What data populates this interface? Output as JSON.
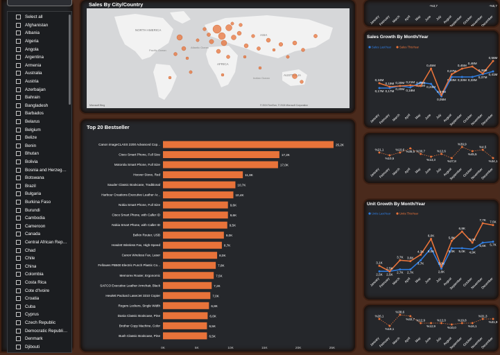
{
  "slicer": {
    "items": [
      "Select all",
      "Afghanistan",
      "Albania",
      "Algeria",
      "Angola",
      "Argentina",
      "Armenia",
      "Australia",
      "Austria",
      "Azerbaijan",
      "Bahrain",
      "Bangladesh",
      "Barbados",
      "Belarus",
      "Belgium",
      "Belize",
      "Benin",
      "Bhutan",
      "Bolivia",
      "Bosnia and Herzegov...",
      "Botswana",
      "Brazil",
      "Bulgaria",
      "Burkina Faso",
      "Burundi",
      "Cambodia",
      "Cameroon",
      "Canada",
      "Central African Repu...",
      "Chad",
      "Chile",
      "China",
      "Colombia",
      "Costa Rica",
      "Cote d'Ivoire",
      "Croatia",
      "Cuba",
      "Cyprus",
      "Czech Republic",
      "Democratic Republic ...",
      "Denmark",
      "Djibouti"
    ]
  },
  "map": {
    "title": "Sales By City/Country",
    "labels": [
      "NORTH AMERICA",
      "Pacific Ocean",
      "Atlantic Ocean",
      "ASIA",
      "AFRICA",
      "Indian Ocean",
      "AUSTRALIA"
    ],
    "attribution": "© 2024 TomTom, © 2024 Microsoft Corporation",
    "logo": "Microsoft Bing"
  },
  "top20": {
    "title": "Top 20 Bestseller",
    "chart_data": {
      "type": "bar",
      "orientation": "horizontal",
      "categories": [
        "Canon imageCLASS 2200 Advanced Cop...",
        "Cisco Smart Phone, Full Size",
        "Motorola Smart Phone, Full Size",
        "Hoover Stove, Red",
        "Sauder Classic Bookcase, Traditional",
        "Harbour Creations Executive Leather Ar...",
        "Nokia Smart Phone, Full Size",
        "Cisco Smart Phone, with Caller ID",
        "Nokia Smart Phone, with Caller ID",
        "Belkin Router, USB",
        "Hewlett Wireless Fax, High-Speed",
        "Canon Wireless Fax, Laser",
        "Fellowes PB500 Electric Punch Plastic Co...",
        "Memorex Router, Ergonomic",
        "SAFCO Executive Leather Armchair, Black",
        "Hewlett Packard LaserJet 3310 Copier",
        "Rogers Lockers, Single Width",
        "Dania Classic Bookcase, Pine",
        "Brother Copy Machine, Color",
        "Bush Classic Bookcase, Pine"
      ],
      "values": [
        25.2,
        17.2,
        17.0,
        11.8,
        10.7,
        10.4,
        9.6,
        9.6,
        9.5,
        9.0,
        8.7,
        8.0,
        7.8,
        7.5,
        7.2,
        7.0,
        6.8,
        6.6,
        6.5,
        6.5
      ],
      "labels": [
        "25,2K",
        "17,2K",
        "17,0K",
        "11,8K",
        "10,7K",
        "10,4K",
        "9,6K",
        "9,6K",
        "9,5K",
        "9,0K",
        "8,7K",
        "8,0K",
        "7,8K",
        "7,5K",
        "7,2K",
        "7,0K",
        "6,8K",
        "6,6K",
        "6,5K",
        "6,5K"
      ],
      "xticks": [
        "0K",
        "5K",
        "10K",
        "15K",
        "20K",
        "25K"
      ],
      "xlim": [
        0,
        25
      ],
      "color": "#e8733a"
    }
  },
  "months": [
    "January",
    "February",
    "March",
    "April",
    "May",
    "June",
    "July",
    "August",
    "September",
    "October",
    "November",
    "December"
  ],
  "r1": {
    "labels": [
      "-%3,7",
      "-%5,7"
    ]
  },
  "sales_growth": {
    "title": "Sales Growth By Month/Year",
    "chart_data": {
      "type": "line",
      "series": [
        {
          "name": "Sales LastYear",
          "color": "#2f7de1",
          "values": [
            0.17,
            0.17,
            0.2,
            0.18,
            0.25,
            0.23,
            0.05,
            0.33,
            0.33,
            0.33,
            0.37,
            0.41
          ],
          "labels": [
            "0,17M",
            "0,17M",
            "0,20M",
            "0,18M",
            "0,25M",
            "0,23M",
            "0,05M",
            "0,33M",
            "0,33M",
            "0,33M",
            "0,37M",
            "0,41M"
          ]
        },
        {
          "name": "Sales ThisYear",
          "color": "#e8733a",
          "values": [
            0.24,
            0.19,
            0.2,
            0.21,
            0.2,
            0.45,
            0.07,
            0.37,
            0.45,
            0.48,
            0.38,
            0.56
          ],
          "labels": [
            "0,24M",
            "0,19M",
            "0,20M",
            "0,21M",
            "0,20M",
            "0,45M",
            "0,07M",
            "0,37M",
            "0,45M",
            "0,48M",
            "0,38M",
            "0,56M"
          ]
        }
      ]
    }
  },
  "sales_pct": {
    "values": [
      "%21,1",
      "%10,5",
      "%10,6",
      "%35,5",
      "%30,7",
      "%13,3",
      "%12,6",
      "%27,8",
      "%39,9",
      "%45,5",
      "%4,5",
      "%34,1"
    ]
  },
  "unit_growth": {
    "title": "Unit Growth By Month/Year",
    "chart_data": {
      "type": "line",
      "series": [
        {
          "name": "Units LastYear",
          "color": "#2f7de1",
          "values": [
            2.5,
            2.5,
            2.7,
            2.7,
            3.7,
            5.0,
            2.8,
            5.0,
            5.0,
            4.9,
            5.6,
            5.7
          ],
          "labels": [
            "2,5K",
            "2,5K",
            "2,7K",
            "2,7K",
            "3,7K",
            "5,0K",
            "2,8K",
            "5,0K",
            "5,0K",
            "4,9K",
            "5,6K",
            "5,7K"
          ]
        },
        {
          "name": "Units ThisYear",
          "color": "#e8733a",
          "values": [
            3.1,
            2.5,
            3.7,
            3.6,
            4.3,
            6.0,
            3.0,
            5.8,
            6.8,
            5.6,
            7.7,
            7.5
          ],
          "labels": [
            "3,1K",
            "2,5K",
            "3,7K",
            "3,6K",
            "4,3K",
            "6,0K",
            "3,0K",
            "5,8K",
            "6,8K",
            "5,6K",
            "7,7K",
            "7,5K"
          ]
        }
      ]
    }
  },
  "unit_pct": {
    "values": [
      "%26,1",
      "%18,1",
      "%38,6",
      "%32,7",
      "%12,9",
      "%12,9",
      "%12,0",
      "%10,0",
      "%19,8",
      "%16,1",
      "%31,3",
      "%31,9"
    ]
  }
}
